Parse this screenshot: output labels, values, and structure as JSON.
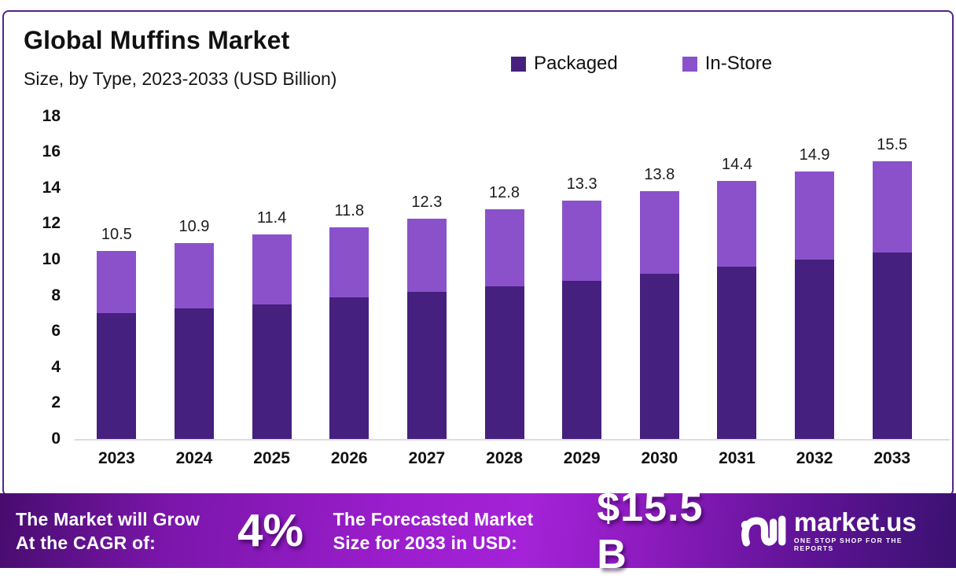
{
  "chart": {
    "title": "Global Muffins Market",
    "subtitle": "Size, by Type, 2023-2033 (USD Billion)",
    "legend": [
      {
        "label": "Packaged",
        "color": "#45207E"
      },
      {
        "label": "In-Store",
        "color": "#8B51CB"
      }
    ]
  },
  "chart_data": {
    "type": "bar",
    "stacked": true,
    "title": "Global Muffins Market Size, by Type, 2023-2033 (USD Billion)",
    "categories": [
      "2023",
      "2024",
      "2025",
      "2026",
      "2027",
      "2028",
      "2029",
      "2030",
      "2031",
      "2032",
      "2033"
    ],
    "series": [
      {
        "name": "Packaged",
        "color": "#45207E",
        "values": [
          7.0,
          7.3,
          7.5,
          7.9,
          8.2,
          8.5,
          8.8,
          9.2,
          9.6,
          10.0,
          10.4
        ]
      },
      {
        "name": "In-Store",
        "color": "#8B51CB",
        "values": [
          3.5,
          3.6,
          3.9,
          3.9,
          4.1,
          4.3,
          4.5,
          4.6,
          4.8,
          4.9,
          5.1
        ]
      }
    ],
    "totals": [
      10.5,
      10.9,
      11.4,
      11.8,
      12.3,
      12.8,
      13.3,
      13.8,
      14.4,
      14.9,
      15.5
    ],
    "total_labels": [
      "10.5",
      "10.9",
      "11.4",
      "11.8",
      "12.3",
      "12.8",
      "13.3",
      "13.8",
      "14.4",
      "14.9",
      "15.5"
    ],
    "xlabel": "",
    "ylabel": "USD Billion",
    "ylim": [
      0,
      18
    ],
    "ytick_step": 2,
    "grid": false,
    "legend_position": "top-right"
  },
  "banner": {
    "cagr_label_line1": "The Market will Grow",
    "cagr_label_line2": "At the CAGR of:",
    "cagr_value": "4%",
    "forecast_label_line1": "The Forecasted Market",
    "forecast_label_line2": "Size for 2033 in USD:",
    "forecast_value": "$15.5 B",
    "logo_text": "market.us",
    "logo_tagline": "ONE STOP SHOP FOR THE REPORTS"
  }
}
